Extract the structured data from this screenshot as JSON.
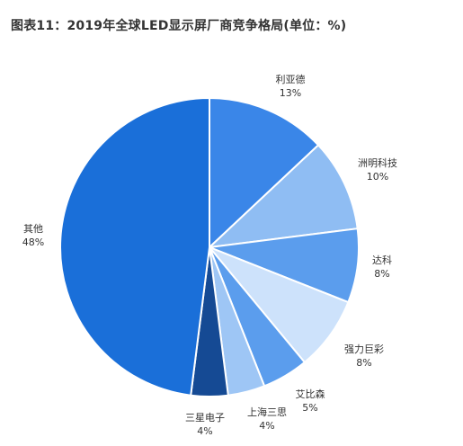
{
  "title": "图表11：2019年全球LED显示屏厂商竞争格局(单位：%)",
  "chart_data": {
    "type": "pie",
    "title": "图表11：2019年全球LED显示屏厂商竞争格局(单位：%)",
    "slices": [
      {
        "name": "利亚德",
        "value": 13,
        "label": "13%",
        "color": "#3a86e8"
      },
      {
        "name": "洲明科技",
        "value": 10,
        "label": "10%",
        "color": "#8fbdf3"
      },
      {
        "name": "达科",
        "value": 8,
        "label": "8%",
        "color": "#5b9ded"
      },
      {
        "name": "强力巨彩",
        "value": 8,
        "label": "8%",
        "color": "#cde2fb"
      },
      {
        "name": "艾比森",
        "value": 5,
        "label": "5%",
        "color": "#5b9ded"
      },
      {
        "name": "上海三思",
        "value": 4,
        "label": "4%",
        "color": "#9ec6f5"
      },
      {
        "name": "三星电子",
        "value": 4,
        "label": "4%",
        "color": "#154a94"
      },
      {
        "name": "其他",
        "value": 48,
        "label": "48%",
        "color": "#1a6fd9"
      }
    ]
  }
}
